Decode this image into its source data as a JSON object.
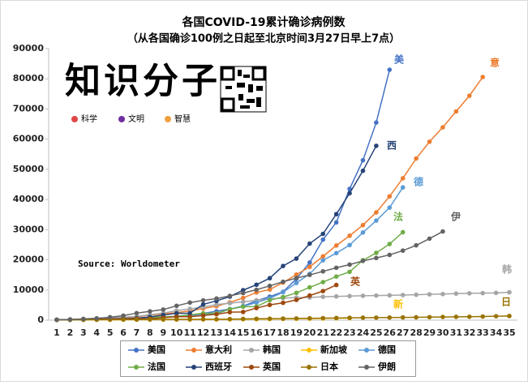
{
  "chart_data": {
    "type": "line",
    "title": "各国COVID-19累计确诊病例数",
    "subtitle": "（从各国确诊100例之日起至北京时间3月27日早上7点）",
    "annotation": "Source: Worldometer",
    "logo": {
      "name": "知识分子",
      "tags": [
        "科学",
        "文明",
        "智慧"
      ]
    },
    "categories": [
      "1",
      "2",
      "3",
      "4",
      "5",
      "6",
      "7",
      "8",
      "9",
      "10",
      "11",
      "12",
      "13",
      "14",
      "15",
      "16",
      "17",
      "18",
      "19",
      "20",
      "21",
      "22",
      "23",
      "24",
      "25",
      "26",
      "27",
      "28",
      "29",
      "30",
      "31",
      "32",
      "33",
      "34",
      "35"
    ],
    "ylim": [
      0,
      90000
    ],
    "yticks": [
      0,
      10000,
      20000,
      30000,
      40000,
      50000,
      60000,
      70000,
      80000,
      90000
    ],
    "grid": false,
    "legend": "bottom",
    "series": [
      {
        "name": "美国",
        "label": "美",
        "color": "#4472c4",
        "values": [
          100,
          124,
          158,
          221,
          319,
          435,
          541,
          704,
          994,
          1301,
          1697,
          2247,
          2943,
          3680,
          4663,
          6411,
          7786,
          9400,
          13680,
          19101,
          26700,
          32400,
          43500,
          53000,
          65500,
          83000,
          null,
          null,
          null,
          null,
          null,
          null,
          null,
          null,
          null
        ]
      },
      {
        "name": "意大利",
        "label": "意",
        "color": "#ed7d31",
        "values": [
          155,
          229,
          322,
          400,
          650,
          888,
          1128,
          1694,
          2036,
          2502,
          3089,
          3858,
          4636,
          5883,
          7375,
          9172,
          10149,
          12462,
          15113,
          17660,
          21157,
          24747,
          27980,
          31506,
          35713,
          41035,
          47021,
          53578,
          59138,
          63927,
          69176,
          74386,
          80589,
          null,
          null
        ]
      },
      {
        "name": "韩国",
        "label": "韩",
        "color": "#a5a5a5",
        "values": [
          104,
          204,
          433,
          602,
          833,
          977,
          1261,
          1766,
          2337,
          3150,
          3736,
          4335,
          5186,
          5621,
          6088,
          6593,
          7041,
          7314,
          7478,
          7513,
          7755,
          7869,
          7979,
          8086,
          8162,
          8236,
          8320,
          8413,
          8565,
          8652,
          8799,
          8897,
          8961,
          9037,
          9241
        ]
      },
      {
        "name": "新加坡",
        "label": "新",
        "color": "#ffc000",
        "values": [
          110,
          112,
          117,
          130,
          138,
          150,
          160,
          166,
          178,
          200,
          212,
          226,
          243,
          266,
          313,
          345,
          385,
          432,
          455,
          509,
          558,
          631,
          683,
          null,
          null,
          null,
          null,
          null,
          null,
          null,
          null,
          null,
          null,
          null,
          null
        ]
      },
      {
        "name": "德国",
        "label": "德",
        "color": "#5b9bd5",
        "values": [
          100,
          130,
          159,
          196,
          262,
          482,
          670,
          799,
          1040,
          1176,
          1457,
          1908,
          2078,
          3675,
          4585,
          5795,
          7272,
          9257,
          12327,
          15320,
          19848,
          22213,
          24873,
          29056,
          33000,
          37300,
          44000,
          null,
          null,
          null,
          null,
          null,
          null,
          null,
          null
        ]
      },
      {
        "name": "法国",
        "label": "法",
        "color": "#70ad47",
        "values": [
          100,
          130,
          191,
          204,
          285,
          377,
          653,
          949,
          1126,
          1209,
          1784,
          2281,
          2281,
          3661,
          4469,
          4499,
          6633,
          7652,
          9043,
          10871,
          12612,
          14459,
          16018,
          19856,
          22304,
          25233,
          29155,
          null,
          null,
          null,
          null,
          null,
          null,
          null,
          null
        ]
      },
      {
        "name": "西班牙",
        "label": "西",
        "color": "#264478",
        "values": [
          120,
          165,
          222,
          259,
          400,
          500,
          673,
          1073,
          1695,
          2277,
          2277,
          5232,
          6391,
          7798,
          9942,
          11748,
          13910,
          17963,
          20410,
          25374,
          28603,
          35136,
          42058,
          49515,
          57786,
          null,
          null,
          null,
          null,
          null,
          null,
          null,
          null,
          null,
          null
        ]
      },
      {
        "name": "英国",
        "label": "英",
        "color": "#9e480e",
        "values": [
          116,
          164,
          207,
          274,
          322,
          384,
          459,
          459,
          802,
          1144,
          1145,
          1551,
          1960,
          2642,
          2716,
          4014,
          5067,
          5745,
          6726,
          8164,
          9640,
          11658,
          null,
          null,
          null,
          null,
          null,
          null,
          null,
          null,
          null,
          null,
          null,
          null,
          null
        ]
      },
      {
        "name": "日本",
        "label": "日",
        "color": "#997300",
        "values": [
          105,
          132,
          144,
          156,
          164,
          186,
          210,
          230,
          239,
          254,
          268,
          284,
          317,
          348,
          407,
          454,
          487,
          514,
          568,
          619,
          675,
          716,
          780,
          814,
          829,
          873,
          917,
          950,
          1007,
          1054,
          1101,
          1128,
          1193,
          1307,
          1387
        ]
      },
      {
        "name": "伊朗",
        "label": "伊",
        "color": "#636363",
        "values": [
          139,
          245,
          388,
          593,
          978,
          1501,
          2336,
          2922,
          3513,
          4747,
          5823,
          6566,
          7161,
          8042,
          9000,
          10075,
          11364,
          12729,
          13938,
          14991,
          16169,
          17361,
          18407,
          19644,
          20610,
          21638,
          23049,
          24811,
          27017,
          29406,
          null,
          null,
          null,
          null,
          null
        ]
      }
    ]
  }
}
